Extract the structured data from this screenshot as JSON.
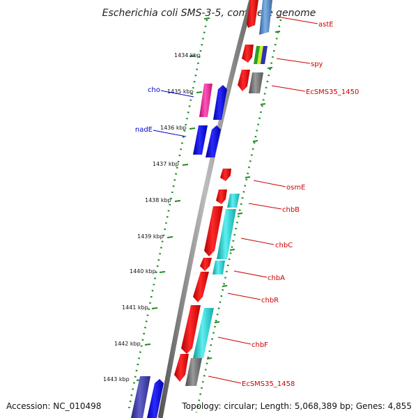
{
  "title": "Escherichia coli SMS-3-5, complete genome",
  "footer": {
    "accession": "Accession: NC_010498",
    "summary": "Topology: circular; Length: 5,068,389 bp; Genes: 4,855"
  },
  "ruler": {
    "ticks": [
      {
        "kbp": 1433,
        "label": ""
      },
      {
        "kbp": 1434,
        "label": "1434 kbp"
      },
      {
        "kbp": 1435,
        "label": "1435 kbp"
      },
      {
        "kbp": 1436,
        "label": "1436 kbp"
      },
      {
        "kbp": 1437,
        "label": "1437 kbp"
      },
      {
        "kbp": 1438,
        "label": "1438 kbp"
      },
      {
        "kbp": 1439,
        "label": "1439 kbp"
      },
      {
        "kbp": 1440,
        "label": "1440 kbp"
      },
      {
        "kbp": 1441,
        "label": "1441 kbp"
      },
      {
        "kbp": 1442,
        "label": "1442 kbp"
      },
      {
        "kbp": 1443,
        "label": "1443 kbp"
      }
    ]
  },
  "gene_labels": [
    {
      "text": "astE",
      "color": "#cc0000"
    },
    {
      "text": "spy",
      "color": "#cc0000"
    },
    {
      "text": "EcSMS35_1450",
      "color": "#cc0000"
    },
    {
      "text": "cho",
      "color": "#0000cc"
    },
    {
      "text": "nadE",
      "color": "#0000cc"
    },
    {
      "text": "osmE",
      "color": "#cc0000"
    },
    {
      "text": "chbB",
      "color": "#cc0000"
    },
    {
      "text": "chbC",
      "color": "#cc0000"
    },
    {
      "text": "chbA",
      "color": "#cc0000"
    },
    {
      "text": "chbR",
      "color": "#cc0000"
    },
    {
      "text": "chbF",
      "color": "#cc0000"
    },
    {
      "text": "EcSMS35_1458",
      "color": "#cc0000"
    }
  ],
  "colors": {
    "backbone": "#8a8a8a",
    "cds_forward": "#ee0000",
    "cds_reverse": "#0000ee",
    "cog_cyan": "#22cccc",
    "cog_gray": "#777777",
    "cog_steel": "#4f86c0",
    "cog_magenta": "#ee2299",
    "cog_indigo": "#3a3aa0",
    "dots": "#1e8a1e"
  }
}
